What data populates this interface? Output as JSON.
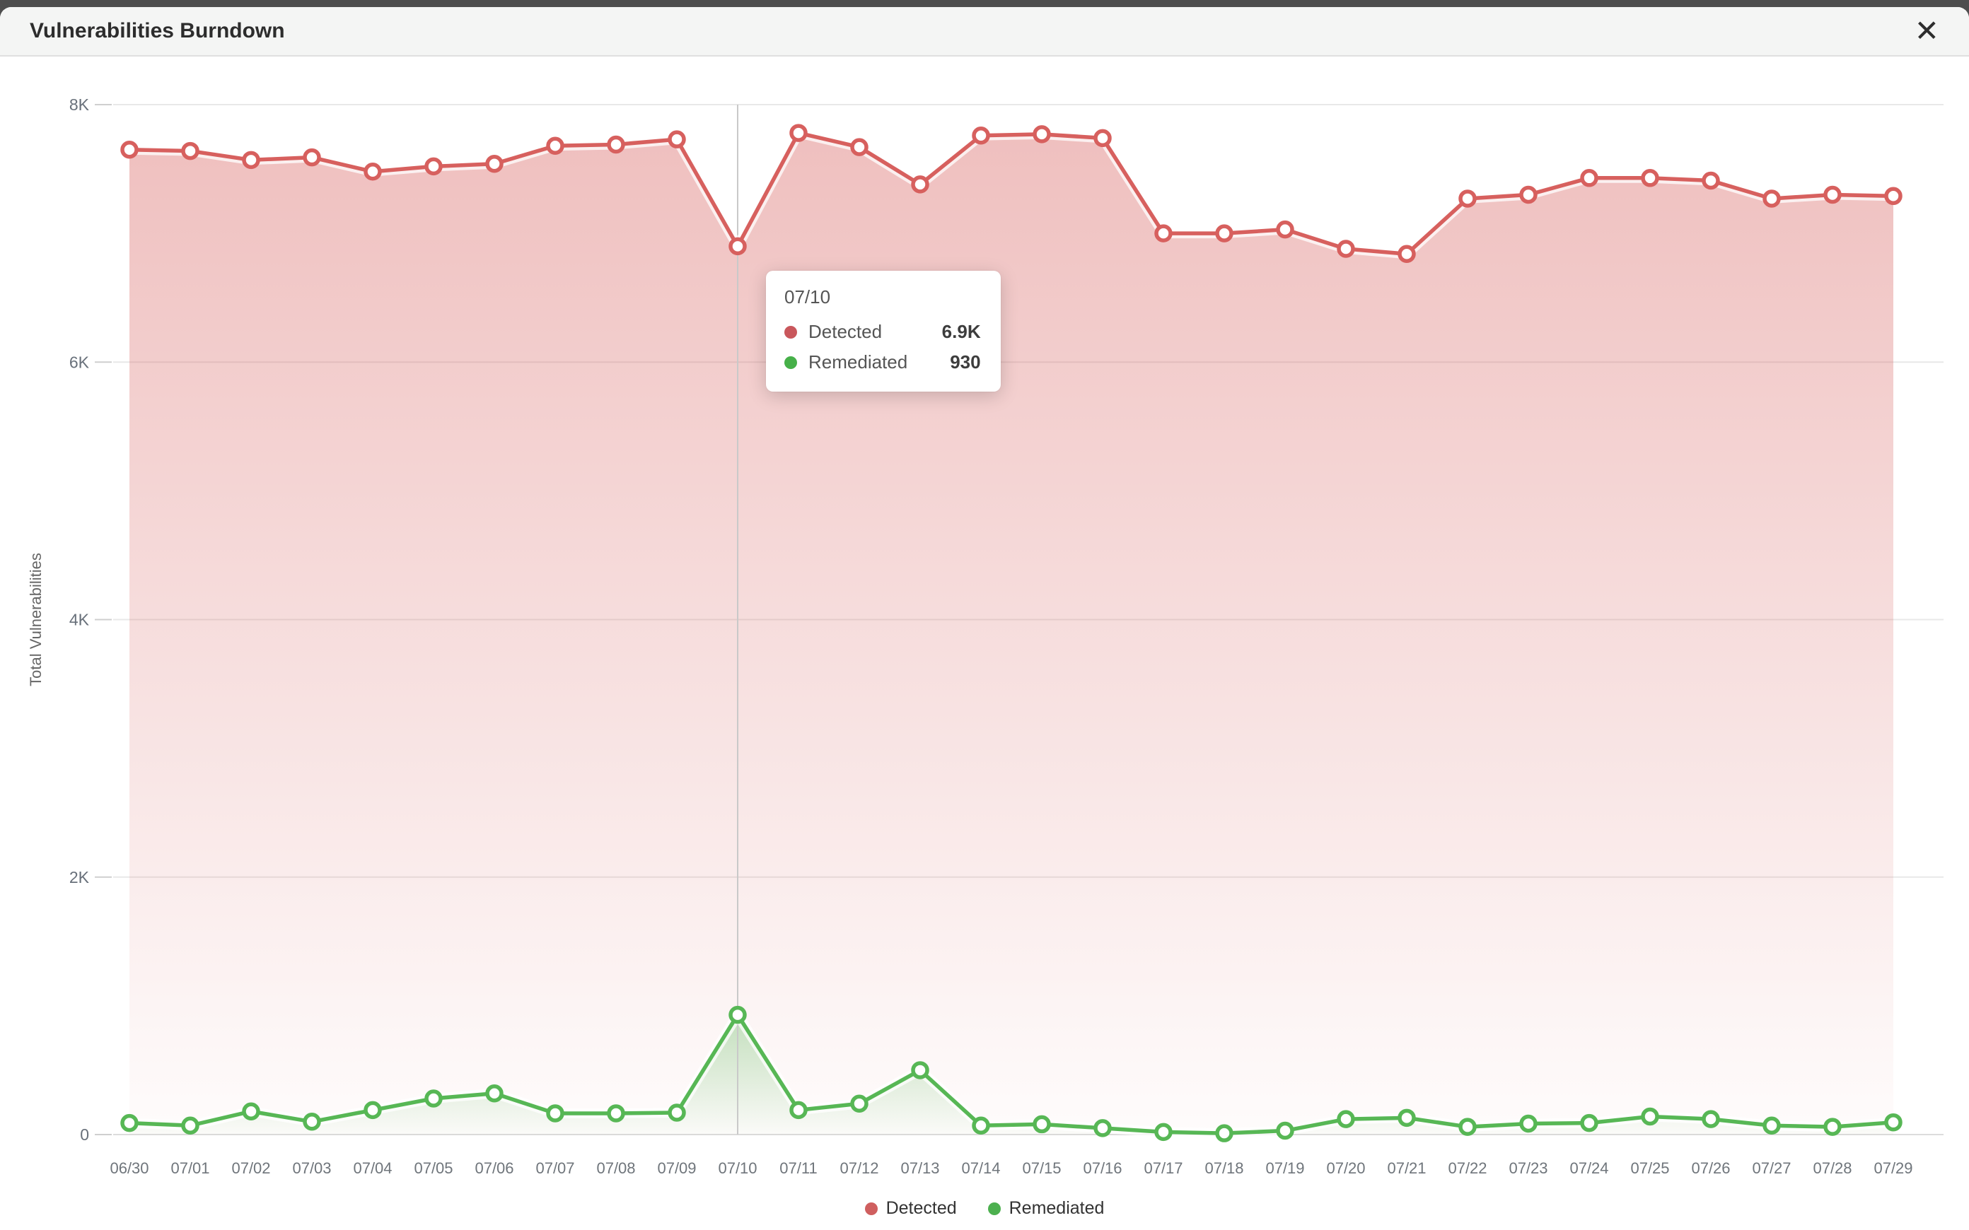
{
  "modal": {
    "title": "Vulnerabilities Burndown",
    "close_icon": "✕"
  },
  "chart_data": {
    "type": "area",
    "title": "Vulnerabilities Burndown",
    "x": [
      "06/30",
      "07/01",
      "07/02",
      "07/03",
      "07/04",
      "07/05",
      "07/06",
      "07/07",
      "07/08",
      "07/09",
      "07/10",
      "07/11",
      "07/12",
      "07/13",
      "07/14",
      "07/15",
      "07/16",
      "07/17",
      "07/18",
      "07/19",
      "07/20",
      "07/21",
      "07/22",
      "07/23",
      "07/24",
      "07/25",
      "07/26",
      "07/27",
      "07/28",
      "07/29"
    ],
    "series": [
      {
        "name": "Detected",
        "color": "#d7605e",
        "values": [
          7650,
          7640,
          7570,
          7590,
          7480,
          7520,
          7540,
          7680,
          7690,
          7730,
          6900,
          7780,
          7670,
          7380,
          7760,
          7770,
          7740,
          7000,
          7000,
          7030,
          6880,
          6840,
          7270,
          7300,
          7430,
          7430,
          7410,
          7270,
          7300,
          7290
        ]
      },
      {
        "name": "Remediated",
        "color": "#57b755",
        "values": [
          90,
          70,
          180,
          100,
          190,
          280,
          320,
          165,
          165,
          170,
          930,
          190,
          240,
          500,
          70,
          80,
          50,
          20,
          10,
          30,
          120,
          130,
          60,
          85,
          90,
          140,
          120,
          70,
          60,
          95
        ]
      }
    ],
    "ylabel": "Total Vulnerabilities",
    "ylim": [
      0,
      8000
    ],
    "yticks": [
      {
        "value": 0,
        "label": "0"
      },
      {
        "value": 2000,
        "label": "2K"
      },
      {
        "value": 4000,
        "label": "4K"
      },
      {
        "value": 6000,
        "label": "6K"
      },
      {
        "value": 8000,
        "label": "8K"
      }
    ],
    "grid": "horizontal-ticks",
    "legend_position": "bottom-center",
    "hover_index": 10
  },
  "tooltip": {
    "date": "07/10",
    "rows": [
      {
        "label": "Detected",
        "value": "6.9K",
        "color": "#c9575c"
      },
      {
        "label": "Remediated",
        "value": "930",
        "color": "#46b049"
      }
    ]
  },
  "legend": {
    "items": [
      {
        "label": "Detected",
        "color": "#cf5f5f"
      },
      {
        "label": "Remediated",
        "color": "#4cb04f"
      }
    ]
  }
}
